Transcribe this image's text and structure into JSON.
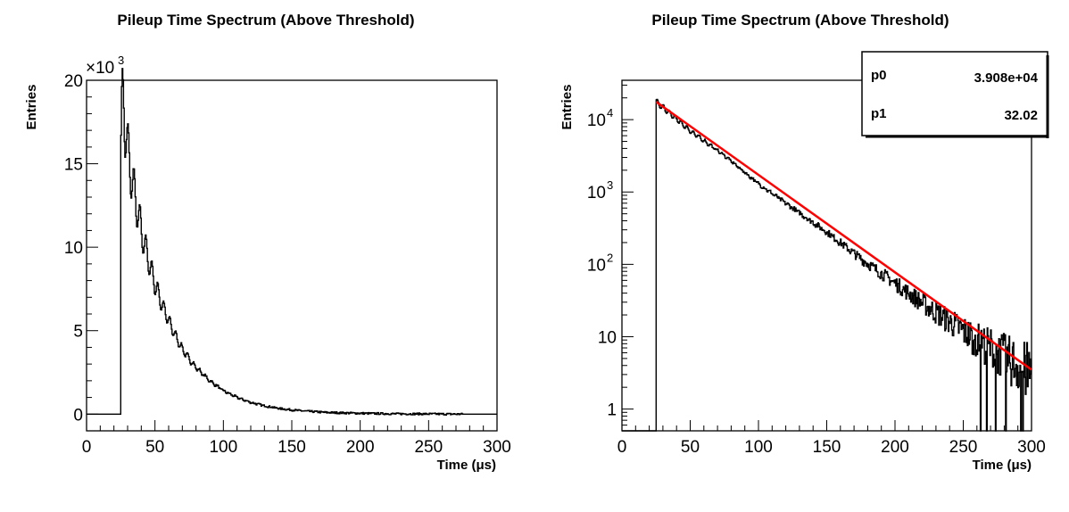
{
  "chart_data": [
    {
      "type": "line",
      "title": "Pileup Time Spectrum (Above Threshold)",
      "xlabel": "Time (μs)",
      "ylabel": "Entries",
      "y_multiplier": "×10",
      "y_multiplier_exp": "3",
      "xlim": [
        0,
        300
      ],
      "ylim": [
        -1,
        20
      ],
      "xscale": "linear",
      "yscale": "linear",
      "x_ticks": [
        "0",
        "50",
        "100",
        "150",
        "200",
        "250",
        "300"
      ],
      "y_ticks": [
        "0",
        "5",
        "10",
        "15",
        "20"
      ],
      "grid": false,
      "series": [
        {
          "x": [
            0,
            24,
            25,
            26,
            27,
            28,
            30,
            35,
            40,
            45,
            50,
            55,
            60,
            65,
            70,
            75,
            80,
            90,
            100,
            110,
            120,
            130,
            140,
            150,
            160,
            175,
            200,
            225,
            250,
            275,
            300
          ],
          "y": [
            0,
            0,
            15.0,
            18.5,
            19.2,
            17.6,
            15.8,
            13.2,
            11.0,
            9.3,
            7.8,
            6.6,
            5.6,
            4.7,
            3.9,
            3.3,
            2.8,
            2.0,
            1.4,
            1.0,
            0.7,
            0.5,
            0.35,
            0.25,
            0.18,
            0.1,
            0.05,
            0.02,
            0.01,
            0.0,
            0.0
          ]
        }
      ]
    },
    {
      "type": "line",
      "title": "Pileup Time Spectrum (Above Threshold)",
      "xlabel": "Time (μs)",
      "ylabel": "Entries",
      "xlim": [
        0,
        300
      ],
      "ylim": [
        0.5,
        35000
      ],
      "xscale": "linear",
      "yscale": "log",
      "x_ticks": [
        "0",
        "50",
        "100",
        "150",
        "200",
        "250",
        "300"
      ],
      "y_ticks": [
        {
          "base": "1",
          "exp": ""
        },
        {
          "base": "10",
          "exp": ""
        },
        {
          "base": "10",
          "exp": "2"
        },
        {
          "base": "10",
          "exp": "3"
        },
        {
          "base": "10",
          "exp": "4"
        }
      ],
      "grid": false,
      "fit_params": [
        {
          "name": "p0",
          "value": "3.908e+04"
        },
        {
          "name": "p1",
          "value": "32.02"
        }
      ],
      "colors": {
        "data": "#000000",
        "fit": "#ff0000"
      },
      "series": [
        {
          "x": [
            0,
            24,
            25,
            26,
            30,
            50,
            75,
            100,
            125,
            150,
            175,
            200,
            225,
            250,
            275,
            300
          ],
          "y": [
            0.5,
            0.5,
            18000,
            17000,
            14800,
            7000,
            3200,
            1300,
            600,
            280,
            120,
            55,
            25,
            12,
            6,
            3
          ]
        },
        {
          "x": [
            25,
            300
          ],
          "y": [
            17600,
            3.5
          ]
        }
      ]
    }
  ]
}
